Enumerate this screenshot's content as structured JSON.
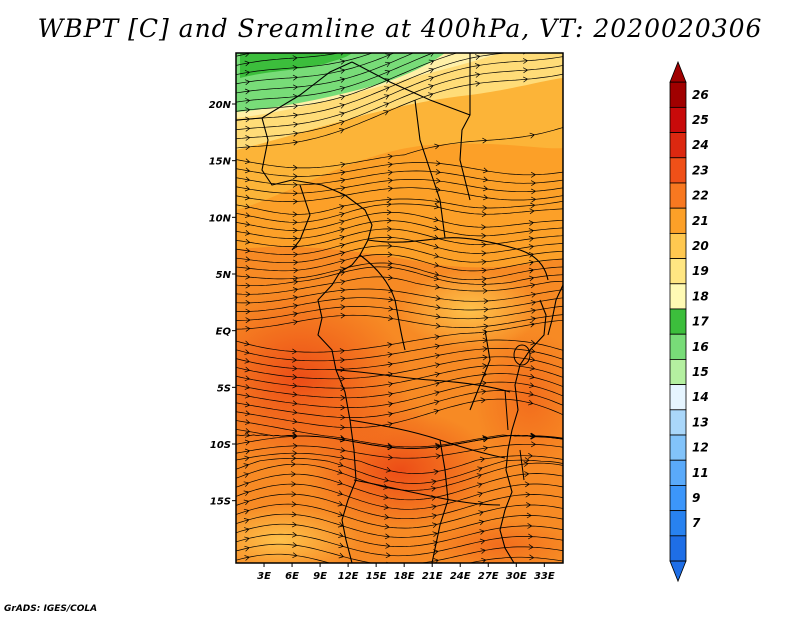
{
  "title": "WBPT [C] and Sreamline at 400hPa, VT: 2020020306",
  "credit": "GrADS: IGES/COLA",
  "map": {
    "lon_range": [
      0,
      35
    ],
    "lat_range": [
      -20.5,
      24.5
    ],
    "lon_ticks": [
      "3E",
      "6E",
      "9E",
      "12E",
      "15E",
      "18E",
      "21E",
      "24E",
      "27E",
      "30E",
      "33E"
    ],
    "lat_ticks": [
      "20N",
      "15N",
      "10N",
      "5N",
      "EQ",
      "5S",
      "10S",
      "15S"
    ]
  },
  "colorbar": {
    "labels": [
      "7",
      "9",
      "11",
      "12",
      "13",
      "14",
      "15",
      "16",
      "17",
      "18",
      "19",
      "20",
      "21",
      "22",
      "23",
      "24",
      "25",
      "26"
    ],
    "colors": [
      "#1e6ee6",
      "#2882f0",
      "#3c96fa",
      "#5aaafa",
      "#82c3fa",
      "#aad7fa",
      "#e6f5ff",
      "#b4f0a0",
      "#78dc78",
      "#3cbe3c",
      "#fffab4",
      "#ffe682",
      "#ffc850",
      "#fca028",
      "#f87820",
      "#f05018",
      "#dc2810",
      "#c80a0a",
      "#a00000"
    ]
  }
}
